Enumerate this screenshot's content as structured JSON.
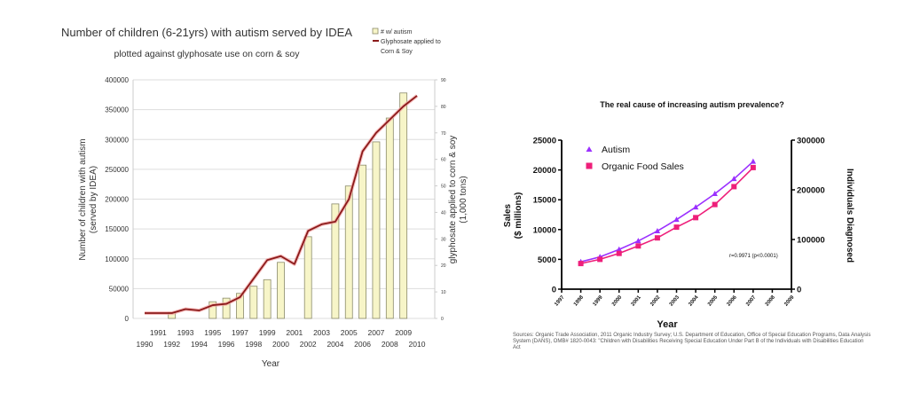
{
  "chart_data": [
    {
      "type": "bar+line",
      "title": "Number of children (6-21yrs) with autism served by IDEA",
      "subtitle": "plotted against glyphosate use on corn & soy",
      "xlabel": "Year",
      "ylabel_line1": "Number of children with autism",
      "ylabel_line2": "(served by IDEA)",
      "y2label_line1": "glyphosate applied to corn & soy",
      "y2label_line2": "(1,000 tons)",
      "xlim": [
        1990,
        2010
      ],
      "ylim": [
        0,
        400000
      ],
      "y2lim": [
        0,
        90
      ],
      "grid": true,
      "legend_position": "top-right",
      "x_ticks_upper": [
        "1991",
        "1993",
        "1995",
        "1997",
        "1999",
        "2001",
        "2003",
        "2005",
        "2007",
        "2009"
      ],
      "x_ticks_lower": [
        "1990",
        "1992",
        "1994",
        "1996",
        "1998",
        "2000",
        "2002",
        "2004",
        "2006",
        "2008",
        "2010"
      ],
      "y_ticks": [
        "0",
        "50000",
        "100000",
        "150000",
        "200000",
        "250000",
        "300000",
        "350000",
        "400000"
      ],
      "y2_ticks": [
        "0",
        "10",
        "20",
        "30",
        "40",
        "50",
        "60",
        "70",
        "80",
        "90"
      ],
      "legend": [
        "# w/ autism",
        "Glyphosate applied to",
        "Corn & Soy"
      ],
      "colors": {
        "bar_fill": "#f7f5c8",
        "bar_stroke": "#8a8a6a",
        "line": "#8b1a1a",
        "line_glow": "#f2a0a0",
        "grid": "#dddddd"
      },
      "series": [
        {
          "name": "# w/ autism",
          "kind": "bar",
          "axis": "left",
          "x": [
            1992,
            1995,
            1996,
            1997,
            1998,
            1999,
            2000,
            2002,
            2004,
            2005,
            2006,
            2007,
            2008,
            2009
          ],
          "values": [
            10000,
            28000,
            34000,
            42000,
            54000,
            65000,
            94000,
            137000,
            192000,
            222000,
            257000,
            296000,
            336000,
            378000
          ]
        },
        {
          "name": "Glyphosate applied to Corn & Soy",
          "kind": "line",
          "axis": "right",
          "x": [
            1990,
            1991,
            1992,
            1993,
            1994,
            1995,
            1996,
            1997,
            1998,
            1999,
            2000,
            2001,
            2002,
            2003,
            2004,
            2005,
            2006,
            2007,
            2008,
            2009,
            2010
          ],
          "values": [
            2,
            2,
            2,
            3.5,
            3,
            5,
            5.5,
            8,
            15,
            22,
            23.5,
            20.5,
            33,
            35.5,
            36.5,
            45,
            63,
            70,
            75,
            80,
            84
          ]
        }
      ]
    },
    {
      "type": "line",
      "title": "The real cause of increasing autism prevalence?",
      "xlabel": "Year",
      "ylabel_line1": "Sales",
      "ylabel_line2": "($ millions)",
      "y2label": "Individuals Diagnosed",
      "xlim": [
        1997,
        2009
      ],
      "ylim": [
        0,
        25000
      ],
      "y2lim": [
        0,
        300000
      ],
      "grid": false,
      "legend_position": "top-left",
      "x_ticks": [
        "1997",
        "1998",
        "1999",
        "2000",
        "2001",
        "2002",
        "2003",
        "2004",
        "2005",
        "2006",
        "2007",
        "2008",
        "2009"
      ],
      "y_ticks": [
        "0",
        "5000",
        "10000",
        "15000",
        "20000",
        "25000"
      ],
      "y2_ticks": [
        "0",
        "100000",
        "200000",
        "300000"
      ],
      "annotation": "r=0.9971 (p<0.0001)",
      "legend": [
        "Autism",
        "Organic Food Sales"
      ],
      "colors": {
        "autism": "#9b30ff",
        "organic": "#ee1f7a",
        "axis": "#000000"
      },
      "series": [
        {
          "name": "Autism",
          "axis": "right",
          "marker": "triangle",
          "x": [
            1998,
            1999,
            2000,
            2001,
            2002,
            2003,
            2004,
            2005,
            2006,
            2007
          ],
          "values": [
            55000,
            65000,
            80000,
            97000,
            117000,
            140000,
            165000,
            192000,
            222000,
            257000
          ]
        },
        {
          "name": "Organic Food Sales",
          "axis": "left",
          "marker": "square",
          "x": [
            1998,
            1999,
            2000,
            2001,
            2002,
            2003,
            2004,
            2005,
            2006,
            2007
          ],
          "values": [
            4300,
            5000,
            6000,
            7250,
            8600,
            10400,
            12000,
            14200,
            17200,
            20400
          ]
        }
      ],
      "sources": "Sources: Organic Trade Association,  2011 Organic Industry Survey; U.S. Department of Education, Office of Special Education Programs, Data Analysis System (DANS), OMB# 1820-0043: \"Children with Disabilities Receiving Special Education Under Part B of the Individuals with Disabilities Education Act"
    }
  ]
}
